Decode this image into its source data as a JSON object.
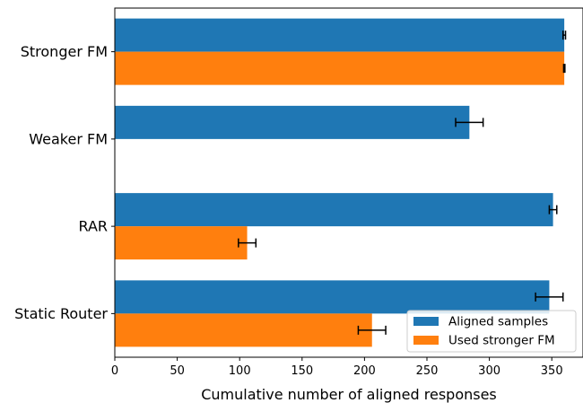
{
  "chart_data": {
    "type": "bar",
    "orientation": "horizontal",
    "categories": [
      "Stronger FM",
      "Weaker FM",
      "RAR",
      "Static Router"
    ],
    "series": [
      {
        "name": "Aligned samples",
        "color": "#1f77b4",
        "values": [
          360,
          284,
          351,
          348
        ],
        "errors": [
          1,
          11,
          3,
          11
        ]
      },
      {
        "name": "Used stronger FM",
        "color": "#ff7f0e",
        "values": [
          360,
          0,
          106,
          206
        ],
        "errors": [
          0.5,
          0,
          7,
          11
        ]
      }
    ],
    "xlabel": "Cumulative number of aligned responses",
    "xticks": [
      "0",
      "50",
      "100",
      "150",
      "200",
      "250",
      "300",
      "350"
    ],
    "xlim": [
      0,
      375
    ],
    "grid": false,
    "legend_position": "lower-right"
  }
}
